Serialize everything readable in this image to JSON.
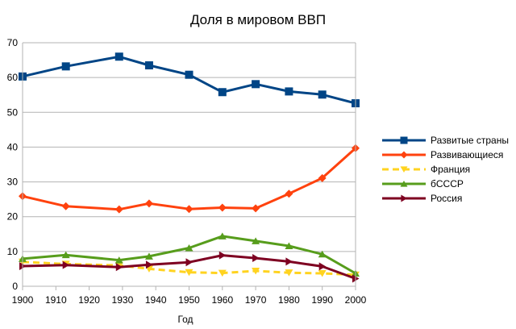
{
  "chart_data": {
    "type": "line",
    "title": "Доля в мировом ВВП",
    "xlabel": "Год",
    "ylabel": "",
    "xlim": [
      1900,
      2000
    ],
    "ylim": [
      0,
      70
    ],
    "x_ticks": [
      "1900",
      "1910",
      "1920",
      "1930",
      "1940",
      "1950",
      "1960",
      "1970",
      "1980",
      "1990",
      "2000"
    ],
    "y_ticks": [
      "0",
      "10",
      "20",
      "30",
      "40",
      "50",
      "60",
      "70"
    ],
    "grid": "horizontal",
    "legend_position": "right",
    "x": [
      1900,
      1913,
      1929,
      1938,
      1950,
      1960,
      1970,
      1980,
      1990,
      2000
    ],
    "series": [
      {
        "name": "Развитые страны",
        "color": "#004586",
        "marker": "square",
        "dash": false,
        "values": [
          60.3,
          63.2,
          66.0,
          63.5,
          60.8,
          55.8,
          58.1,
          56.0,
          55.1,
          52.6
        ]
      },
      {
        "name": "Развивающиеся",
        "color": "#ff420e",
        "marker": "diamond",
        "dash": false,
        "values": [
          25.9,
          23.0,
          22.1,
          23.8,
          22.2,
          22.6,
          22.4,
          26.6,
          31.1,
          39.7
        ]
      },
      {
        "name": "Франция",
        "color": "#ffd320",
        "marker": "triangle-down",
        "dash": true,
        "values": [
          7.0,
          6.4,
          6.0,
          5.0,
          4.0,
          3.8,
          4.4,
          3.9,
          3.7,
          3.3
        ]
      },
      {
        "name": "бСССР",
        "color": "#579d1c",
        "marker": "triangle-up",
        "dash": false,
        "values": [
          7.9,
          9.0,
          7.5,
          8.6,
          11.0,
          14.4,
          13.0,
          11.6,
          9.2,
          3.7
        ]
      },
      {
        "name": "Россия",
        "color": "#7e0021",
        "marker": "triangle-right",
        "dash": false,
        "values": [
          5.8,
          6.1,
          5.5,
          6.2,
          6.9,
          8.9,
          8.1,
          7.1,
          5.7,
          2.2
        ]
      }
    ]
  }
}
